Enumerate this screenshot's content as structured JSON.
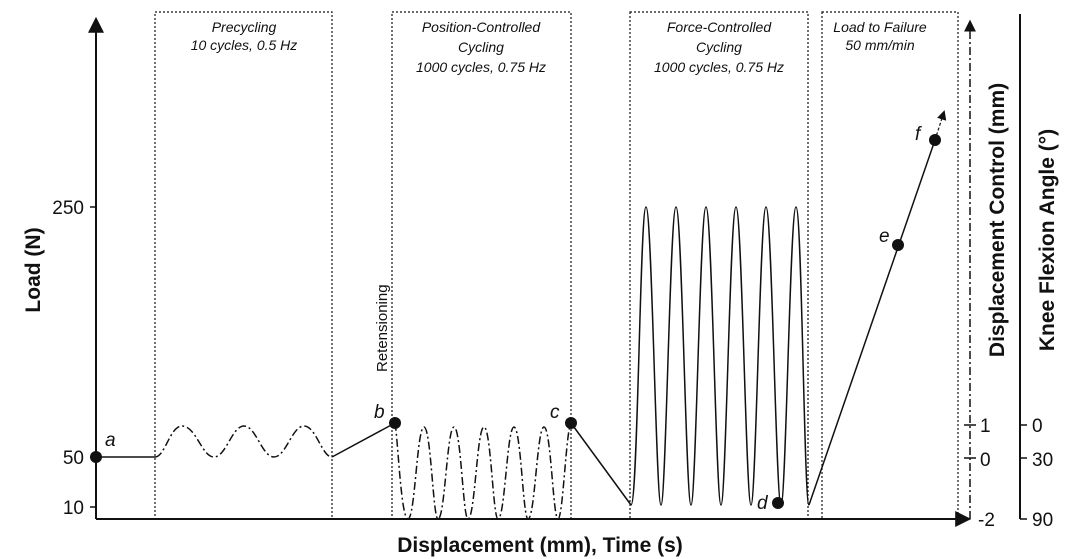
{
  "chart_data": {
    "type": "line",
    "xlabel": "Displacement (mm), Time (s)",
    "ylabel": "Load (N)",
    "y_ticks": [
      "250",
      "50",
      "10"
    ],
    "right_axis_1": {
      "label": "Displacement Control (mm)",
      "ticks": [
        "1",
        "0",
        "-2"
      ]
    },
    "right_axis_2": {
      "label": "Knee Flexion Angle (°)",
      "ticks": [
        "0",
        "30",
        "90"
      ]
    },
    "phases": [
      {
        "name": "Precycling",
        "detail": "10 cycles, 0.5 Hz"
      },
      {
        "name": "Position-Controlled",
        "name2": "Cycling",
        "detail": "1000 cycles, 0.75 Hz"
      },
      {
        "name": "Force-Controlled",
        "name2": "Cycling",
        "detail": "1000 cycles, 0.75 Hz"
      },
      {
        "name": "Load to Failure",
        "detail": "50 mm/min"
      }
    ],
    "annotation": "Retensioning",
    "points": [
      {
        "label": "a",
        "load": 50
      },
      {
        "label": "b",
        "load": 90
      },
      {
        "label": "c",
        "load": 88
      },
      {
        "label": "d",
        "load": 12
      },
      {
        "label": "e",
        "load": 220
      },
      {
        "label": "f",
        "load": 335
      }
    ]
  }
}
